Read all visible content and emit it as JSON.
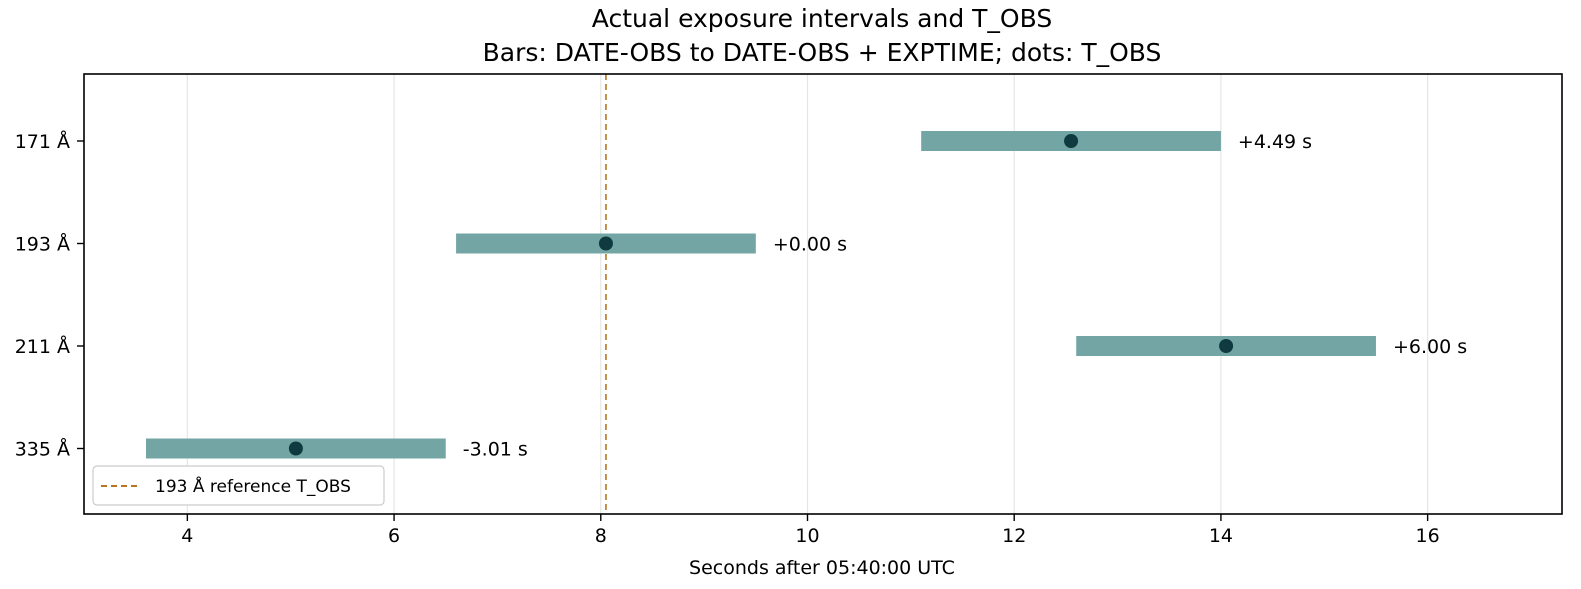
{
  "chart_data": {
    "type": "range-bar",
    "title": "Actual exposure intervals and T_OBS",
    "subtitle": "Bars: DATE-OBS to DATE-OBS + EXPTIME; dots: T_OBS",
    "xlabel": "Seconds after 05:40:00 UTC",
    "ylabel": "",
    "xlim": [
      3.0,
      17.3
    ],
    "xticks": [
      4,
      6,
      8,
      10,
      12,
      14,
      16
    ],
    "grid": "vertical",
    "categories": [
      "171 Å",
      "193 Å",
      "211 Å",
      "335 Å"
    ],
    "intervals": [
      {
        "category": "171 Å",
        "start": 11.1,
        "end": 14.0,
        "t_obs": 12.55,
        "label": "+4.49 s"
      },
      {
        "category": "193 Å",
        "start": 6.6,
        "end": 9.5,
        "t_obs": 8.05,
        "label": "+0.00 s"
      },
      {
        "category": "211 Å",
        "start": 12.6,
        "end": 15.5,
        "t_obs": 14.05,
        "label": "+6.00 s"
      },
      {
        "category": "335 Å",
        "start": 3.6,
        "end": 6.5,
        "t_obs": 5.05,
        "label": "-3.01 s"
      }
    ],
    "reference_line": {
      "x": 8.05,
      "label": "193 Å reference T_OBS"
    },
    "legend": {
      "position": "lower-left",
      "entries": [
        "193 Å reference T_OBS"
      ]
    },
    "colors": {
      "bar": "#73a5a5",
      "dot": "#0f3a3f",
      "reference": "#b5761e",
      "grid": "#e6e6e6",
      "axis": "#000000"
    }
  }
}
